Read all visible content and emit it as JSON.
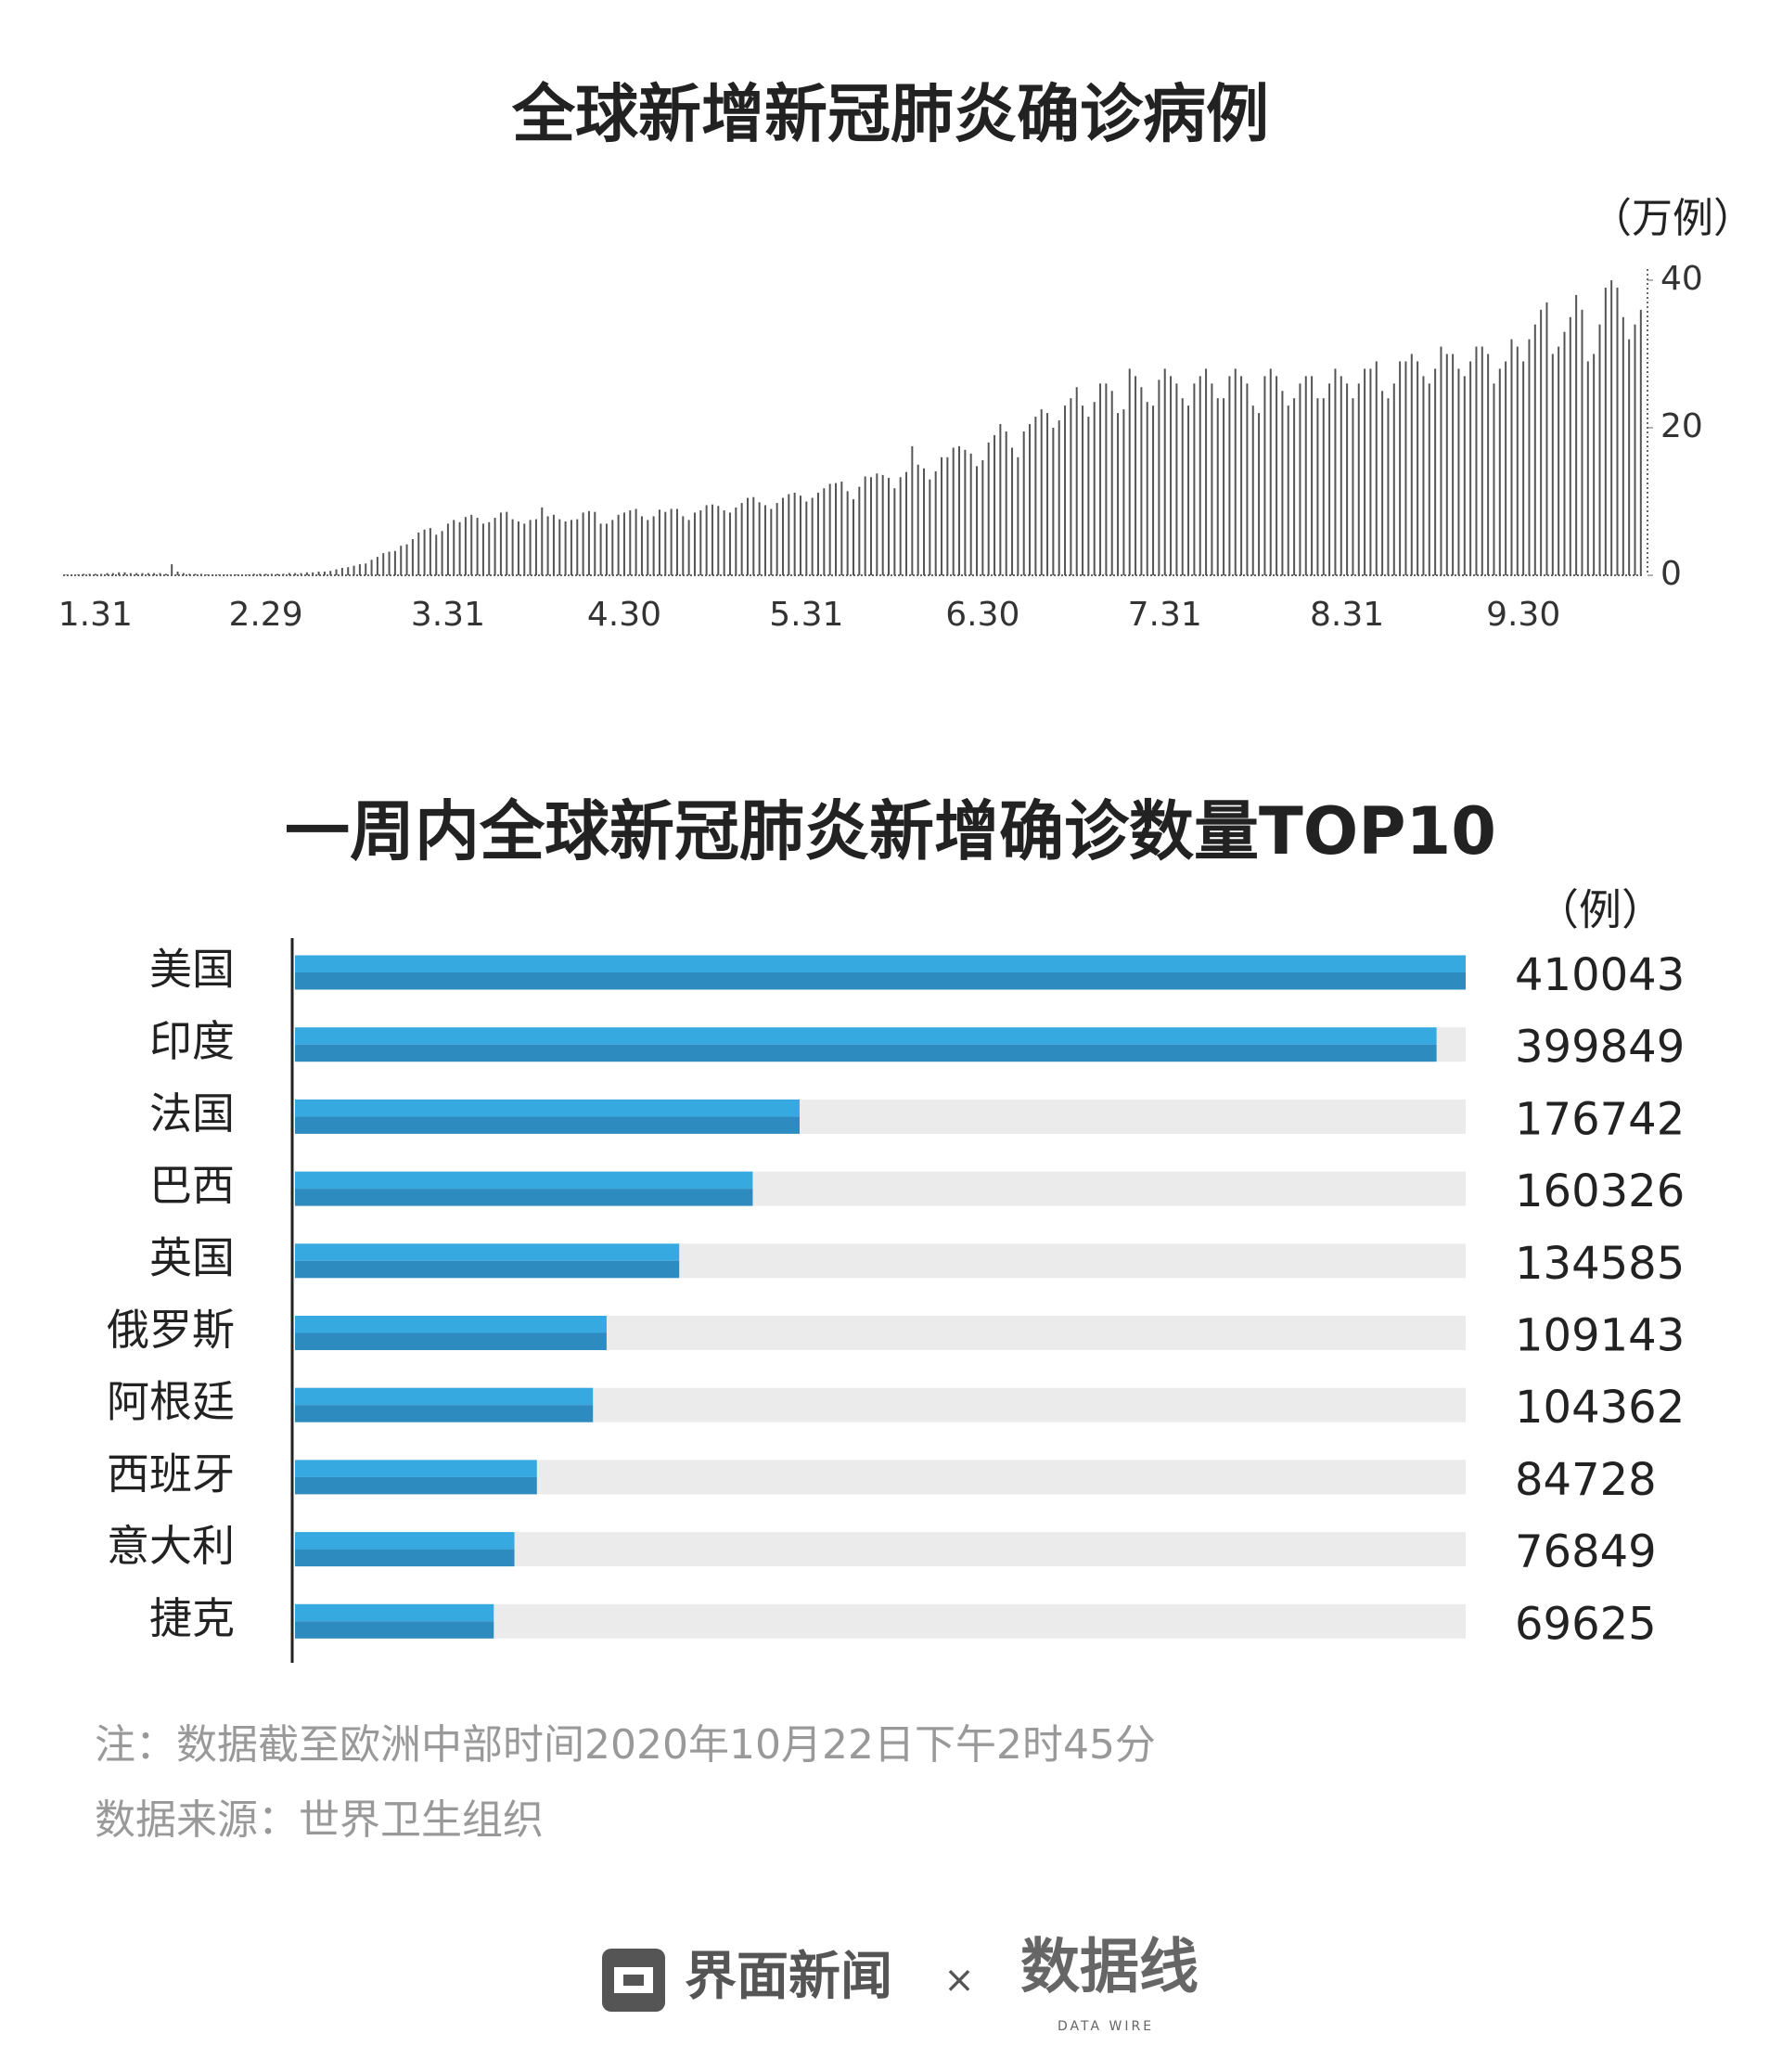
{
  "charts": [
    {
      "type": "bar",
      "title": "全球新增新冠肺炎确诊病例",
      "unit": "（万例）",
      "color": "#555555",
      "categories": [
        null,
        null,
        null,
        null,
        null,
        "1.31",
        null,
        null,
        null,
        null,
        null,
        null,
        null,
        null,
        null,
        null,
        null,
        null,
        null,
        null,
        null,
        null,
        null,
        null,
        null,
        null,
        null,
        null,
        null,
        null,
        null,
        null,
        null,
        null,
        "2.29",
        null,
        null,
        null,
        null,
        null,
        null,
        null,
        null,
        null,
        null,
        null,
        null,
        null,
        null,
        null,
        null,
        null,
        null,
        null,
        null,
        null,
        null,
        null,
        null,
        null,
        null,
        null,
        null,
        null,
        null,
        "3.31",
        null,
        null,
        null,
        null,
        null,
        null,
        null,
        null,
        null,
        null,
        null,
        null,
        null,
        null,
        null,
        null,
        null,
        null,
        null,
        null,
        null,
        null,
        null,
        null,
        null,
        null,
        null,
        null,
        null,
        "4.30",
        null,
        null,
        null,
        null,
        null,
        null,
        null,
        null,
        null,
        null,
        null,
        null,
        null,
        null,
        null,
        null,
        null,
        null,
        null,
        null,
        null,
        null,
        null,
        null,
        null,
        null,
        null,
        null,
        null,
        null,
        "5.31",
        null,
        null,
        null,
        null,
        null,
        null,
        null,
        null,
        null,
        null,
        null,
        null,
        null,
        null,
        null,
        null,
        null,
        null,
        null,
        null,
        null,
        null,
        null,
        null,
        null,
        null,
        null,
        null,
        null,
        "6.30",
        null,
        null,
        null,
        null,
        null,
        null,
        null,
        null,
        null,
        null,
        null,
        null,
        null,
        null,
        null,
        null,
        null,
        null,
        null,
        null,
        null,
        null,
        null,
        null,
        null,
        null,
        null,
        null,
        null,
        null,
        "7.31",
        null,
        null,
        null,
        null,
        null,
        null,
        null,
        null,
        null,
        null,
        null,
        null,
        null,
        null,
        null,
        null,
        null,
        null,
        null,
        null,
        null,
        null,
        null,
        null,
        null,
        null,
        null,
        null,
        null,
        null,
        "8.31",
        null,
        null,
        null,
        null,
        null,
        null,
        null,
        null,
        null,
        null,
        null,
        null,
        null,
        null,
        null,
        null,
        null,
        null,
        null,
        null,
        null,
        null,
        null,
        null,
        null,
        null,
        null,
        null,
        null,
        "9.30",
        null,
        null,
        null,
        null,
        null,
        null,
        null,
        null,
        null,
        null,
        null,
        null,
        null,
        null,
        null,
        null,
        null,
        null,
        null,
        null
      ],
      "values": [
        0.07,
        0.08,
        0.1,
        0.2,
        0.2,
        0.2,
        0.2,
        0.3,
        0.3,
        0.4,
        0.4,
        0.3,
        0.3,
        0.3,
        0.3,
        0.3,
        0.3,
        0.2,
        1.5,
        0.5,
        0.3,
        0.2,
        0.2,
        0.2,
        0.1,
        0.1,
        0.1,
        0.1,
        0.1,
        0.1,
        0.1,
        0.1,
        0.2,
        0.2,
        0.2,
        0.2,
        0.2,
        0.2,
        0.3,
        0.3,
        0.3,
        0.4,
        0.4,
        0.5,
        0.5,
        0.6,
        0.8,
        1.0,
        1.1,
        1.3,
        1.5,
        1.6,
        2.1,
        2.5,
        3.0,
        3.2,
        3.3,
        4.0,
        4.2,
        4.9,
        5.8,
        6.2,
        6.4,
        5.5,
        6.0,
        7.0,
        7.5,
        7.2,
        7.9,
        8.2,
        7.8,
        7.0,
        7.2,
        7.8,
        8.5,
        8.6,
        7.6,
        7.3,
        7.0,
        7.5,
        7.6,
        9.2,
        8.0,
        8.2,
        7.6,
        7.3,
        7.5,
        7.6,
        8.5,
        8.7,
        8.6,
        7.0,
        7.0,
        7.5,
        8.2,
        8.5,
        8.8,
        9.0,
        8.0,
        7.5,
        8.0,
        8.9,
        8.6,
        9.0,
        9.0,
        8.0,
        7.5,
        8.5,
        8.8,
        9.5,
        9.6,
        9.4,
        8.8,
        8.5,
        9.2,
        9.8,
        10.5,
        10.6,
        9.9,
        9.5,
        9.0,
        9.8,
        10.5,
        11.0,
        11.2,
        10.8,
        10.0,
        10.5,
        11.2,
        11.8,
        12.4,
        12.5,
        12.7,
        11.4,
        10.3,
        12.0,
        13.4,
        13.3,
        13.8,
        13.6,
        13.2,
        11.8,
        13.3,
        14.0,
        17.5,
        15.0,
        14.5,
        13.0,
        14.1,
        16.0,
        16.0,
        17.3,
        17.5,
        17.0,
        16.5,
        14.8,
        15.6,
        18.0,
        19.0,
        20.5,
        19.5,
        17.3,
        16.0,
        19.5,
        20.5,
        21.5,
        22.5,
        22.0,
        20.0,
        21.0,
        23.0,
        24.0,
        25.5,
        23.0,
        21.5,
        23.5,
        26.0,
        26.0,
        25.0,
        22.0,
        22.5,
        28.0,
        27.0,
        25.5,
        23.5,
        23.0,
        26.5,
        28.0,
        27,
        26,
        24,
        23,
        26,
        27,
        28,
        26,
        24,
        24,
        27,
        28,
        27,
        26,
        23,
        22,
        27,
        28,
        27,
        25,
        23,
        24,
        26,
        27,
        27,
        24,
        24,
        26,
        28,
        27,
        26,
        24,
        26,
        28,
        28,
        29,
        25,
        24,
        26,
        29,
        29,
        30,
        29,
        27,
        26,
        28,
        31,
        30,
        30,
        28,
        27,
        29,
        31,
        31,
        30,
        26,
        28,
        29,
        32,
        31,
        29,
        32,
        34,
        36,
        37,
        30,
        31,
        33,
        35,
        38,
        36,
        29,
        30,
        34,
        39,
        40,
        39,
        35,
        32,
        34,
        36
      ],
      "ylim": [
        0,
        40
      ],
      "yticks": [
        0,
        20,
        40
      ]
    },
    {
      "type": "hbar",
      "title": "一周内全球新冠肺炎新增确诊数量TOP10",
      "unit": "（例）",
      "categories": [
        "美国",
        "印度",
        "法国",
        "巴西",
        "英国",
        "俄罗斯",
        "阿根廷",
        "西班牙",
        "意大利",
        "捷克"
      ],
      "values": [
        410043,
        399849,
        176742,
        160326,
        134585,
        109143,
        104362,
        84728,
        76849,
        69625
      ],
      "colors": [
        "#36a9e1",
        "#2e8bbf"
      ],
      "track_color": "#ebebeb"
    }
  ],
  "notes": [
    "注：数据截至欧洲中部时间2020年10月22日下午2时45分",
    "数据来源：世界卫生组织"
  ],
  "footer": {
    "brand": "界面新闻",
    "times": "×",
    "partner": "数据线",
    "partner_sub": "DATA WIRE"
  }
}
